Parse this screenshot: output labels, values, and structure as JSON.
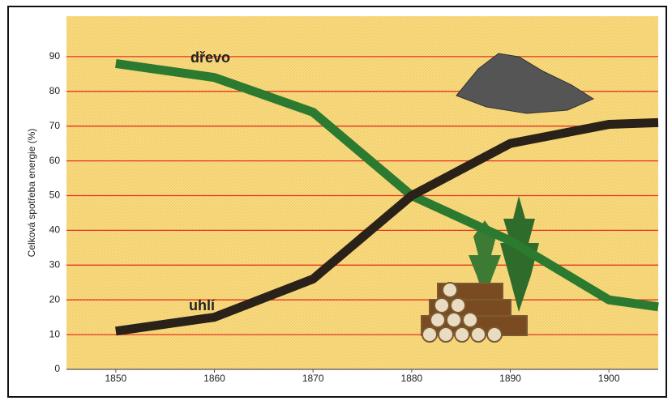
{
  "chart_data": {
    "type": "line",
    "y_label": "Celková spotřeba energie (%)",
    "x": [
      1850,
      1860,
      1870,
      1880,
      1890,
      1900,
      1905
    ],
    "xlim": [
      1845,
      1905
    ],
    "xticks": [
      1850,
      1860,
      1870,
      1880,
      1890,
      1900
    ],
    "ylim": [
      0,
      100
    ],
    "yticks": [
      0,
      10,
      20,
      30,
      40,
      50,
      60,
      70,
      80,
      90
    ],
    "grid": true,
    "grid_color": "#e8331f",
    "series": [
      {
        "name": "dřevo",
        "color": "#2c7a30",
        "values": [
          88,
          84,
          74,
          50,
          37,
          20,
          18
        ]
      },
      {
        "name": "uhlí",
        "color": "#2a2118",
        "values": [
          11,
          15,
          26,
          50,
          65,
          70.5,
          71
        ]
      }
    ]
  }
}
